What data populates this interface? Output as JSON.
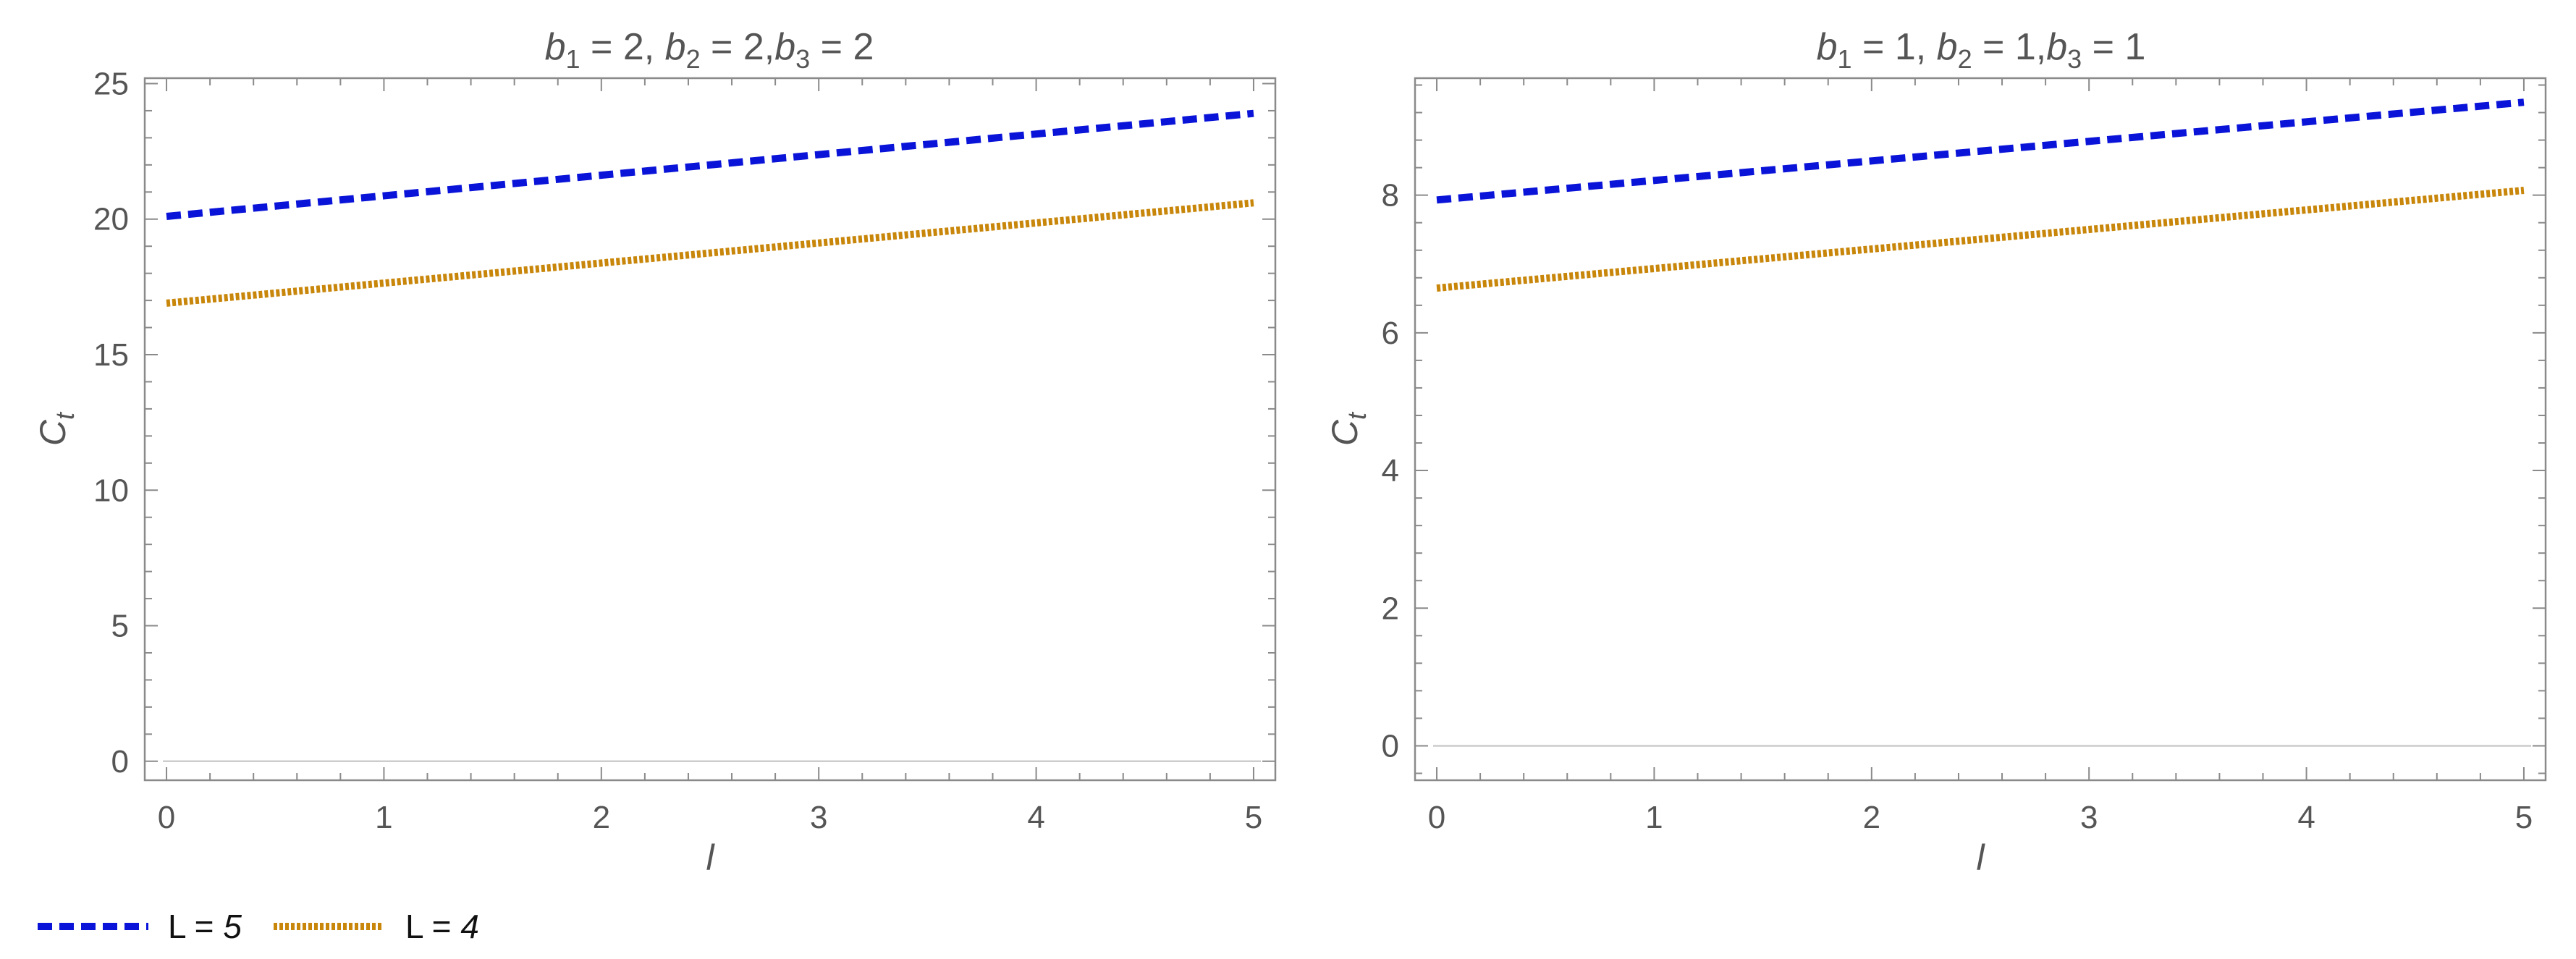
{
  "legend": {
    "entries": [
      {
        "prefix": "L = ",
        "value": "5",
        "color": "#0a14d8",
        "dash": "dashed"
      },
      {
        "prefix": "L = ",
        "value": "4",
        "color": "#c8860a",
        "dash": "dotted"
      }
    ]
  },
  "chart_data": [
    {
      "type": "line",
      "title": {
        "b1": "2",
        "b2": "2",
        "b3": "2"
      },
      "xlabel": "l",
      "ylabel": {
        "main": "C",
        "sub": "t"
      },
      "xlim": [
        -0.1,
        5.1
      ],
      "ylim": [
        -0.7,
        25.2
      ],
      "xticks": [
        0,
        1,
        2,
        3,
        4,
        5
      ],
      "yticks": [
        0,
        5,
        10,
        15,
        20,
        25
      ],
      "grid": false,
      "zero_line": true,
      "series": [
        {
          "name": "L = 5",
          "x": [
            0,
            5
          ],
          "y": [
            20.1,
            23.9
          ],
          "color": "#0a14d8",
          "style": "dashed"
        },
        {
          "name": "L = 4",
          "x": [
            0,
            5
          ],
          "y": [
            16.9,
            20.6
          ],
          "color": "#c8860a",
          "style": "dotted"
        }
      ]
    },
    {
      "type": "line",
      "title": {
        "b1": "1",
        "b2": "1",
        "b3": "1"
      },
      "xlabel": "l",
      "ylabel": {
        "main": "C",
        "sub": "t"
      },
      "xlim": [
        -0.1,
        5.1
      ],
      "ylim": [
        -0.5,
        9.7
      ],
      "xticks": [
        0,
        1,
        2,
        3,
        4,
        5
      ],
      "yticks": [
        0,
        2,
        4,
        6,
        8
      ],
      "grid": false,
      "zero_line": true,
      "series": [
        {
          "name": "L = 5",
          "x": [
            0,
            5
          ],
          "y": [
            7.93,
            9.35
          ],
          "color": "#0a14d8",
          "style": "dashed"
        },
        {
          "name": "L = 4",
          "x": [
            0,
            5
          ],
          "y": [
            6.65,
            8.07
          ],
          "color": "#c8860a",
          "style": "dotted"
        }
      ]
    }
  ]
}
